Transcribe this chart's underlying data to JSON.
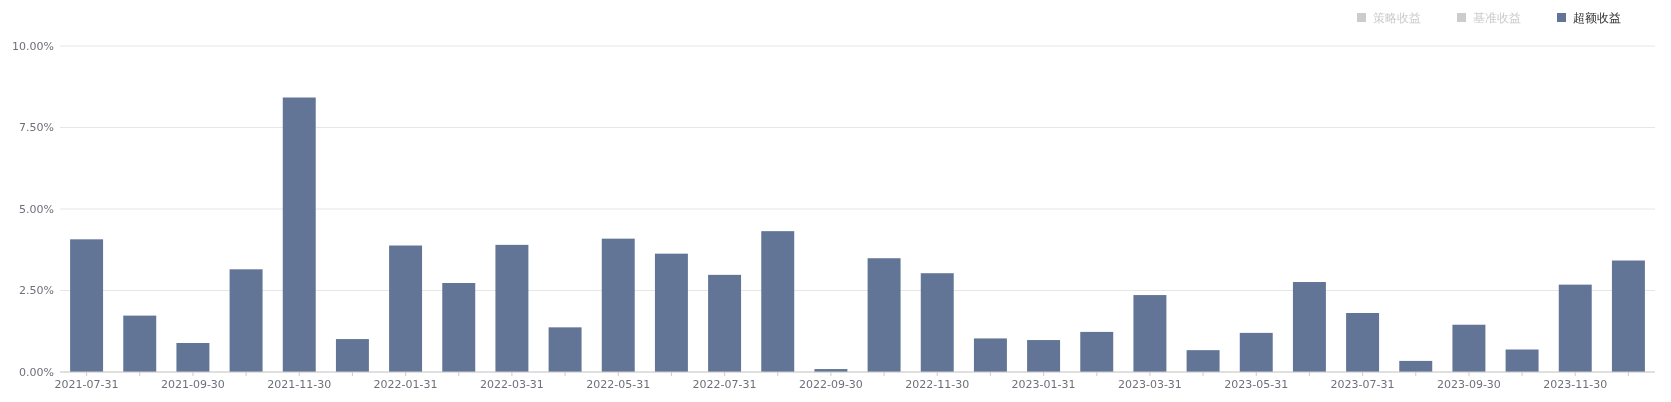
{
  "chart_data": {
    "type": "bar",
    "categories": [
      "2021-07-31",
      null,
      "2021-09-30",
      null,
      "2021-11-30",
      null,
      "2022-01-31",
      null,
      "2022-03-31",
      null,
      "2022-05-31",
      null,
      "2022-07-31",
      null,
      "2022-09-30",
      null,
      "2022-11-30",
      null,
      "2023-01-31",
      null,
      "2023-03-31",
      null,
      "2023-05-31",
      null,
      "2023-07-31",
      null,
      "2023-09-30",
      null,
      "2023-11-30",
      null
    ],
    "series": [
      {
        "name": "策略收益",
        "color": "#cccccc",
        "values": [
          null,
          null,
          null,
          null,
          null,
          null,
          null,
          null,
          null,
          null,
          null,
          null,
          null,
          null,
          null,
          null,
          null,
          null,
          null,
          null,
          null,
          null,
          null,
          null,
          null,
          null,
          null,
          null,
          null,
          null
        ]
      },
      {
        "name": "基准收益",
        "color": "#cccccc",
        "values": [
          null,
          null,
          null,
          null,
          null,
          null,
          null,
          null,
          null,
          null,
          null,
          null,
          null,
          null,
          null,
          null,
          null,
          null,
          null,
          null,
          null,
          null,
          null,
          null,
          null,
          null,
          null,
          null,
          null,
          null
        ]
      },
      {
        "name": "超额收益",
        "color": "#627596",
        "values": [
          4.07,
          1.73,
          0.89,
          3.15,
          8.42,
          1.01,
          3.88,
          2.73,
          3.9,
          1.37,
          4.09,
          3.63,
          2.98,
          4.32,
          0.09,
          3.49,
          3.03,
          1.03,
          0.98,
          1.23,
          2.36,
          0.67,
          1.2,
          2.76,
          1.81,
          0.34,
          1.45,
          0.69,
          2.68,
          3.42
        ]
      }
    ],
    "ylim": [
      0,
      10
    ],
    "yticks": [
      {
        "value": 0,
        "label": "0.00%"
      },
      {
        "value": 2.5,
        "label": "2.50%"
      },
      {
        "value": 5,
        "label": "5.00%"
      },
      {
        "value": 7.5,
        "label": "7.50%"
      },
      {
        "value": 10,
        "label": "10.00%"
      }
    ],
    "grid": "y",
    "legend": "top right"
  }
}
